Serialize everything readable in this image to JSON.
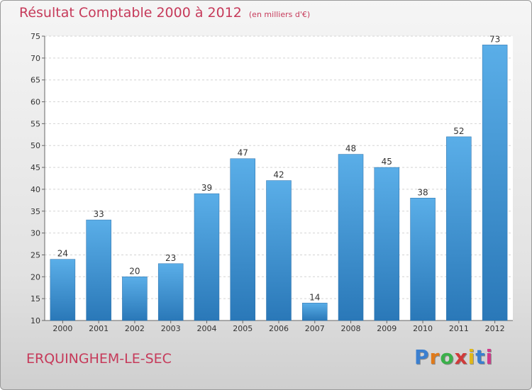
{
  "chart_data": {
    "type": "bar",
    "title": "Résultat Comptable 2000 à 2012",
    "unit_note": "(en milliers d'€)",
    "categories": [
      "2000",
      "2001",
      "2002",
      "2003",
      "2004",
      "2005",
      "2006",
      "2007",
      "2008",
      "2009",
      "2010",
      "2011",
      "2012"
    ],
    "values": [
      24,
      33,
      20,
      23,
      39,
      47,
      42,
      14,
      48,
      45,
      38,
      52,
      73
    ],
    "ylim": [
      10,
      75
    ],
    "yticks": [
      10,
      15,
      20,
      25,
      30,
      35,
      40,
      45,
      50,
      55,
      60,
      65,
      70,
      75
    ],
    "grid": true,
    "bar_color_top": "#5aaee8",
    "bar_color_bottom": "#2a78b8"
  },
  "footer": {
    "city": "ERQUINGHEM-LE-SEC",
    "brand_letters": [
      "P",
      "r",
      "o",
      "x",
      "i",
      "t",
      "i"
    ],
    "brand_colors": [
      "#3a7fd0",
      "#e07a1a",
      "#3ab04a",
      "#d03a3a",
      "#e0b81a",
      "#3a7fd0",
      "#d03a8a"
    ]
  }
}
